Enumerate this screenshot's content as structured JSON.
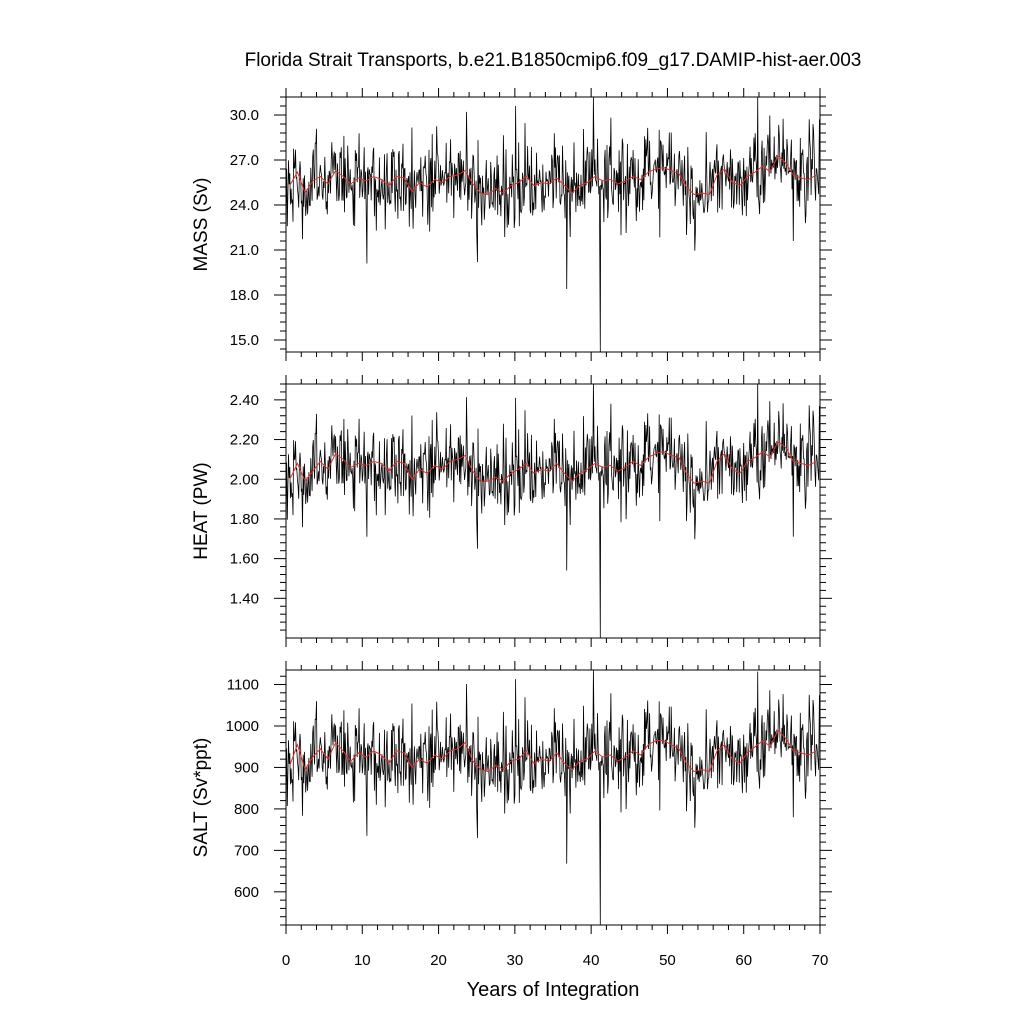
{
  "chart_data": {
    "type": "line",
    "title": "Florida Strait Transports, b.e21.B1850cmip6.f09_g17.DAMIP-hist-aer.003",
    "xlabel": "Years of Integration",
    "xlim": [
      0,
      70
    ],
    "x_ticks": [
      "0",
      "10",
      "20",
      "30",
      "40",
      "50",
      "60",
      "70"
    ],
    "x_tick_values": [
      0,
      10,
      20,
      30,
      40,
      50,
      60,
      70
    ],
    "line_colors": {
      "monthly": "#000000",
      "annual_mean": "#e0302a"
    },
    "panels": [
      {
        "ylabel": "MASS (Sv)",
        "ylim": [
          14.2,
          31.2
        ],
        "y_ticks": [
          "30.0",
          "27.0",
          "24.0",
          "21.0",
          "18.0",
          "15.0"
        ],
        "y_tick_values": [
          30,
          27,
          24,
          21,
          18,
          15
        ],
        "annual_mean": [
          25.3,
          26.2,
          24.8,
          25.6,
          25.9,
          25.4,
          26.3,
          25.9,
          25.4,
          25.8,
          25.6,
          25.9,
          25.7,
          25.3,
          25.9,
          25.8,
          24.9,
          25.5,
          25.2,
          25.7,
          25.5,
          25.9,
          26.0,
          26.3,
          25.4,
          24.8,
          24.7,
          25.1,
          24.8,
          25.3,
          25.5,
          25.9,
          25.3,
          25.5,
          25.4,
          25.8,
          25.3,
          24.8,
          25.3,
          25.5,
          25.9,
          25.6,
          25.7,
          25.4,
          25.6,
          25.9,
          25.7,
          26.2,
          26.4,
          26.5,
          26.3,
          26.1,
          25.2,
          24.7,
          24.8,
          24.7,
          26.0,
          26.4,
          25.5,
          25.3,
          25.9,
          26.2,
          26.6,
          26.2,
          27.3,
          26.8,
          26.0,
          25.8,
          25.7,
          26.0
        ],
        "extremes": [
          {
            "year": 30.1,
            "value": 30.6
          },
          {
            "year": 36.8,
            "value": 18.4
          },
          {
            "year": 40.3,
            "value": 31.2
          },
          {
            "year": 41.2,
            "value": 14.2
          },
          {
            "year": 10.6,
            "value": 20.1
          },
          {
            "year": 25.1,
            "value": 20.2
          },
          {
            "year": 66.5,
            "value": 21.6
          }
        ]
      },
      {
        "ylabel": "HEAT (PW)",
        "ylim": [
          1.2,
          2.48
        ],
        "y_ticks": [
          "2.40",
          "2.20",
          "2.00",
          "1.80",
          "1.60",
          "1.40"
        ],
        "y_tick_values": [
          2.4,
          2.2,
          2.0,
          1.8,
          1.6,
          1.4
        ],
        "annual_mean": [
          2.0,
          2.08,
          1.99,
          2.04,
          2.09,
          2.05,
          2.13,
          2.1,
          2.06,
          2.08,
          2.07,
          2.09,
          2.08,
          2.04,
          2.09,
          2.08,
          2.0,
          2.05,
          2.03,
          2.07,
          2.05,
          2.09,
          2.1,
          2.12,
          2.04,
          1.99,
          1.99,
          2.01,
          1.99,
          2.03,
          2.05,
          2.08,
          2.03,
          2.05,
          2.04,
          2.08,
          2.03,
          1.99,
          2.03,
          2.05,
          2.08,
          2.06,
          2.07,
          2.04,
          2.06,
          2.09,
          2.07,
          2.11,
          2.13,
          2.14,
          2.12,
          2.11,
          2.03,
          1.98,
          1.99,
          1.98,
          2.09,
          2.13,
          2.05,
          2.03,
          2.09,
          2.11,
          2.14,
          2.11,
          2.19,
          2.16,
          2.09,
          2.08,
          2.07,
          2.09
        ],
        "extremes": [
          {
            "year": 30.1,
            "value": 2.41
          },
          {
            "year": 36.8,
            "value": 1.54
          },
          {
            "year": 40.3,
            "value": 2.48
          },
          {
            "year": 41.2,
            "value": 1.2
          },
          {
            "year": 10.6,
            "value": 1.71
          },
          {
            "year": 25.1,
            "value": 1.65
          },
          {
            "year": 66.5,
            "value": 1.71
          }
        ]
      },
      {
        "ylabel": "SALT (Sv*ppt)",
        "ylim": [
          520,
          1135
        ],
        "y_ticks": [
          "1100",
          "1000",
          "900",
          "800",
          "700",
          "600"
        ],
        "y_tick_values": [
          1100,
          1000,
          900,
          800,
          700,
          600
        ],
        "annual_mean": [
          905,
          955,
          895,
          925,
          945,
          920,
          960,
          940,
          915,
          935,
          925,
          940,
          930,
          910,
          940,
          935,
          900,
          920,
          910,
          930,
          920,
          940,
          945,
          960,
          915,
          895,
          890,
          905,
          895,
          915,
          920,
          940,
          910,
          920,
          915,
          935,
          910,
          895,
          915,
          920,
          940,
          925,
          930,
          915,
          925,
          940,
          930,
          955,
          965,
          965,
          955,
          945,
          910,
          890,
          895,
          890,
          940,
          955,
          920,
          910,
          935,
          950,
          965,
          950,
          990,
          970,
          940,
          935,
          930,
          940
        ],
        "extremes": [
          {
            "year": 30.1,
            "value": 1113
          },
          {
            "year": 36.8,
            "value": 668
          },
          {
            "year": 40.3,
            "value": 1135
          },
          {
            "year": 41.2,
            "value": 520
          },
          {
            "year": 10.6,
            "value": 735
          },
          {
            "year": 25.1,
            "value": 730
          },
          {
            "year": 66.5,
            "value": 780
          }
        ]
      }
    ]
  }
}
